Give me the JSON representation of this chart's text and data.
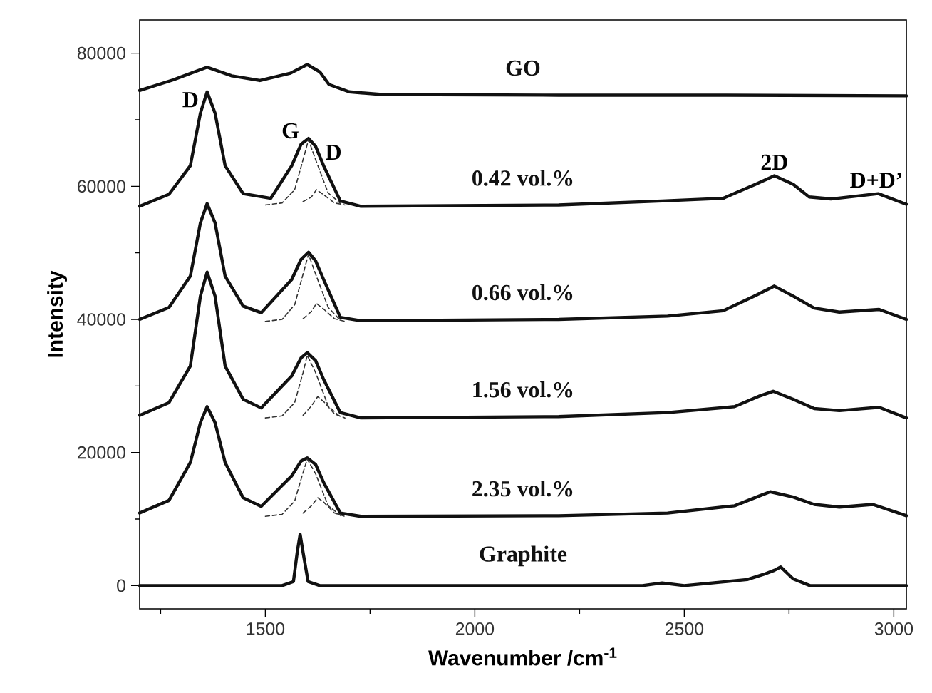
{
  "chart_data": {
    "type": "line",
    "xlabel": "Wavenumber /cm$^{-1}$",
    "ylabel": "Intensity",
    "xlim": [
      1200,
      3030
    ],
    "ylim": [
      -3500,
      85000
    ],
    "xticks": [
      {
        "value": 1250,
        "label": null
      },
      1500,
      {
        "value": 1750,
        "label": null
      },
      2000,
      {
        "value": 2250,
        "label": null
      },
      2500,
      {
        "value": 2750,
        "label": null
      },
      3000
    ],
    "yticks": [
      0,
      {
        "value": 10000,
        "label": null
      },
      20000,
      {
        "value": 30000,
        "label": null
      },
      40000,
      {
        "value": 50000,
        "label": null
      },
      60000,
      {
        "value": 70000,
        "label": null
      },
      80000
    ],
    "grid": false,
    "marker": "none",
    "series": [
      {
        "name": "GO",
        "color": "#111111",
        "x": [
          1200,
          1280,
          1361,
          1420,
          1487,
          1560,
          1600,
          1630,
          1652,
          1700,
          1778,
          2200,
          2600,
          3030
        ],
        "values": [
          74400,
          76000,
          77900,
          76600,
          75900,
          77000,
          78300,
          77200,
          75300,
          74200,
          73800,
          73700,
          73700,
          73600
        ]
      },
      {
        "name": "0.42 vol.%",
        "color": "#111111",
        "x": [
          1200,
          1270,
          1321,
          1345,
          1361,
          1380,
          1404,
          1447,
          1513,
          1563,
          1585,
          1603,
          1620,
          1639,
          1679,
          1728,
          2200,
          2447,
          2593,
          2670,
          2715,
          2760,
          2798,
          2850,
          2963,
          3030
        ],
        "values": [
          57000,
          58800,
          63100,
          71000,
          74200,
          71000,
          63100,
          58900,
          58200,
          63100,
          66300,
          67200,
          66000,
          63100,
          57800,
          57000,
          57200,
          57800,
          58200,
          60300,
          61600,
          60300,
          58400,
          58100,
          58900,
          57300
        ]
      },
      {
        "name": "0.66 vol.%",
        "color": "#111111",
        "x": [
          1200,
          1270,
          1321,
          1345,
          1361,
          1380,
          1404,
          1447,
          1490,
          1563,
          1585,
          1603,
          1620,
          1639,
          1679,
          1728,
          2200,
          2460,
          2593,
          2670,
          2715,
          2760,
          2810,
          2870,
          2965,
          3030
        ],
        "values": [
          40000,
          41800,
          46500,
          54500,
          57400,
          54500,
          46500,
          42000,
          41000,
          46000,
          49000,
          50100,
          48800,
          46000,
          40300,
          39800,
          40000,
          40500,
          41300,
          43600,
          45000,
          43500,
          41700,
          41100,
          41500,
          40000
        ]
      },
      {
        "name": "1.56 vol.%",
        "color": "#111111",
        "x": [
          1200,
          1270,
          1321,
          1345,
          1361,
          1380,
          1404,
          1447,
          1490,
          1563,
          1585,
          1600,
          1620,
          1639,
          1679,
          1728,
          2200,
          2460,
          2620,
          2680,
          2712,
          2760,
          2810,
          2870,
          2965,
          3030
        ],
        "values": [
          25600,
          27500,
          33000,
          43500,
          47100,
          43500,
          33000,
          28000,
          26700,
          31500,
          34200,
          35000,
          33800,
          31000,
          26000,
          25200,
          25400,
          26000,
          26900,
          28500,
          29200,
          28000,
          26600,
          26300,
          26800,
          25200
        ]
      },
      {
        "name": "2.35 vol.%",
        "color": "#111111",
        "x": [
          1200,
          1270,
          1321,
          1345,
          1361,
          1380,
          1404,
          1447,
          1490,
          1563,
          1585,
          1600,
          1620,
          1639,
          1679,
          1728,
          2200,
          2460,
          2620,
          2680,
          2705,
          2760,
          2810,
          2870,
          2950,
          3030
        ],
        "values": [
          10900,
          12800,
          18500,
          24500,
          26900,
          24500,
          18500,
          13200,
          11900,
          16500,
          18700,
          19200,
          18200,
          15500,
          10900,
          10400,
          10500,
          10900,
          12000,
          13500,
          14100,
          13300,
          12200,
          11800,
          12200,
          10500
        ]
      },
      {
        "name": "Graphite",
        "color": "#111111",
        "x": [
          1200,
          1540,
          1567,
          1576,
          1583,
          1590,
          1602,
          1630,
          2400,
          2447,
          2500,
          2650,
          2690,
          2715,
          2730,
          2760,
          2800,
          3030
        ],
        "values": [
          0,
          0,
          600,
          5000,
          7700,
          5000,
          600,
          0,
          0,
          400,
          0,
          900,
          1700,
          2300,
          2800,
          1000,
          0,
          0
        ]
      },
      {
        "color": "#333333",
        "line_style": "dashed",
        "x": [
          1500,
          1540,
          1570,
          1590,
          1603,
          1620,
          1650,
          1680
        ],
        "values": [
          57200,
          57500,
          59500,
          64000,
          67000,
          64000,
          59000,
          57400
        ]
      },
      {
        "color": "#333333",
        "line_style": "dashed",
        "x": [
          1590,
          1610,
          1622,
          1640,
          1665,
          1690
        ],
        "values": [
          57700,
          58400,
          59500,
          58700,
          57500,
          57200
        ]
      },
      {
        "color": "#333333",
        "line_style": "dashed",
        "x": [
          1500,
          1540,
          1570,
          1590,
          1603,
          1620,
          1650,
          1680
        ],
        "values": [
          39700,
          40000,
          42200,
          46800,
          49800,
          46800,
          41800,
          39800
        ]
      },
      {
        "color": "#333333",
        "line_style": "dashed",
        "x": [
          1590,
          1610,
          1622,
          1640,
          1665,
          1690
        ],
        "values": [
          40100,
          41200,
          42400,
          41500,
          40100,
          39700
        ]
      },
      {
        "color": "#333333",
        "line_style": "dashed",
        "x": [
          1500,
          1540,
          1570,
          1590,
          1600,
          1620,
          1650,
          1680
        ],
        "values": [
          25200,
          25500,
          27500,
          32000,
          34600,
          32000,
          27000,
          25300
        ]
      },
      {
        "color": "#333333",
        "line_style": "dashed",
        "x": [
          1590,
          1610,
          1625,
          1640,
          1665,
          1690
        ],
        "values": [
          25600,
          27000,
          28400,
          27600,
          25800,
          25200
        ]
      },
      {
        "color": "#333333",
        "line_style": "dashed",
        "x": [
          1500,
          1540,
          1570,
          1590,
          1600,
          1620,
          1650,
          1680
        ],
        "values": [
          10400,
          10700,
          12700,
          17000,
          19000,
          16800,
          12000,
          10500
        ]
      },
      {
        "color": "#333333",
        "line_style": "dashed",
        "x": [
          1590,
          1610,
          1625,
          1640,
          1665,
          1690
        ],
        "values": [
          10900,
          12000,
          13200,
          12500,
          10900,
          10400
        ]
      }
    ],
    "annotations": [
      {
        "text": "D",
        "x": 1345,
        "y": 71000
      },
      {
        "text": "G",
        "x": 1585,
        "y": 66300
      },
      {
        "text": "D",
        "x": 1639,
        "y": 63100
      },
      {
        "text": "2D",
        "x": 2715,
        "y": 61600
      },
      {
        "text": "D+D’",
        "x": 2963,
        "y": 58900
      }
    ]
  }
}
